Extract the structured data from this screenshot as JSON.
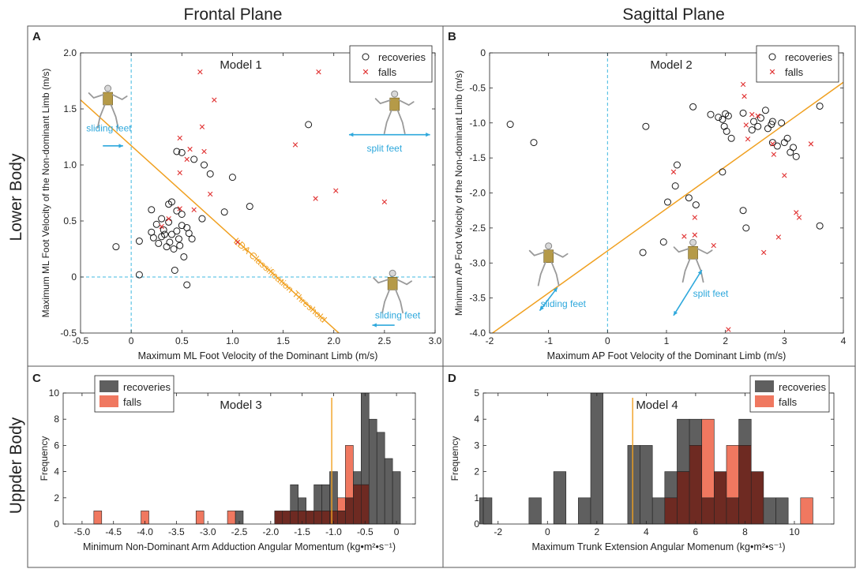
{
  "figure": {
    "col_titles": [
      "Frontal Plane",
      "Sagittal Plane"
    ],
    "row_titles": [
      "Lower Body",
      "Uppder Body"
    ],
    "colors": {
      "recovery_marker": "#1a1a1a",
      "fall_marker": "#e03030",
      "threshold": "#f0a020",
      "guide": "#40b8e0",
      "annotation": "#2ea8dc",
      "hist_recovery": "#5f5f5f",
      "hist_fall": "#f07860",
      "hist_overlap": "#6e2a22",
      "frame": "#555555"
    }
  },
  "chart_data": [
    {
      "panel": "A",
      "type": "scatter",
      "title": "Model 1",
      "xlabel": "Maximum ML Foot Velocity of the Dominant Limb (m/s)",
      "ylabel": "Maximum ML Foot Velocity of the Non-dominant Limb (m/s)",
      "xlim": [
        -0.5,
        3.0
      ],
      "ylim": [
        -0.5,
        2.0
      ],
      "xticks": [
        -0.5,
        0,
        0.5,
        1.0,
        1.5,
        2.0,
        2.5,
        3.0
      ],
      "xtick_labels": [
        "-0.5",
        "0",
        "0.5",
        "1.0",
        "1.5",
        "2.0",
        "2.5",
        "3.0"
      ],
      "yticks": [
        -0.5,
        0,
        0.5,
        1.0,
        1.5,
        2.0
      ],
      "ytick_labels": [
        "-0.5",
        "0",
        "0.5",
        "1.0",
        "1.5",
        "2.0"
      ],
      "legend": [
        "recoveries",
        "falls"
      ],
      "legend_position": "top-right",
      "guides": {
        "x": 0,
        "y": 0
      },
      "threshold": {
        "label": "LDA Classification Threshold",
        "from": [
          -0.5,
          1.58
        ],
        "to": [
          2.05,
          -0.5
        ]
      },
      "annotations": [
        {
          "text": "sliding feet",
          "at": [
            -0.22,
            1.3
          ]
        },
        {
          "text": "split feet",
          "at": [
            2.5,
            1.12
          ]
        },
        {
          "text": "sliding feet",
          "at": [
            2.63,
            -0.37
          ]
        }
      ],
      "series": [
        {
          "name": "recoveries",
          "points": [
            [
              -0.15,
              0.27
            ],
            [
              0.08,
              0.02
            ],
            [
              0.08,
              0.32
            ],
            [
              0.2,
              0.6
            ],
            [
              0.2,
              0.4
            ],
            [
              0.22,
              0.35
            ],
            [
              0.25,
              0.47
            ],
            [
              0.27,
              0.3
            ],
            [
              0.3,
              0.36
            ],
            [
              0.3,
              0.52
            ],
            [
              0.32,
              0.42
            ],
            [
              0.33,
              0.38
            ],
            [
              0.35,
              0.27
            ],
            [
              0.37,
              0.49
            ],
            [
              0.37,
              0.65
            ],
            [
              0.38,
              0.31
            ],
            [
              0.4,
              0.67
            ],
            [
              0.4,
              0.38
            ],
            [
              0.42,
              0.25
            ],
            [
              0.43,
              0.06
            ],
            [
              0.45,
              0.41
            ],
            [
              0.45,
              0.59
            ],
            [
              0.47,
              0.34
            ],
            [
              0.48,
              0.28
            ],
            [
              0.5,
              0.56
            ],
            [
              0.5,
              0.46
            ],
            [
              0.52,
              0.18
            ],
            [
              0.55,
              -0.07
            ],
            [
              0.55,
              0.44
            ],
            [
              0.57,
              0.39
            ],
            [
              0.6,
              0.34
            ],
            [
              0.45,
              1.12
            ],
            [
              0.5,
              1.11
            ],
            [
              0.62,
              1.05
            ],
            [
              0.72,
              1.0
            ],
            [
              0.78,
              0.92
            ],
            [
              0.7,
              0.52
            ],
            [
              0.92,
              0.58
            ],
            [
              1.0,
              0.89
            ],
            [
              1.17,
              0.63
            ],
            [
              1.75,
              1.36
            ]
          ]
        },
        {
          "name": "falls",
          "points": [
            [
              0.3,
              0.45
            ],
            [
              0.37,
              0.52
            ],
            [
              0.48,
              0.61
            ],
            [
              0.48,
              0.93
            ],
            [
              0.48,
              1.24
            ],
            [
              0.58,
              1.14
            ],
            [
              0.62,
              0.6
            ],
            [
              0.68,
              1.83
            ],
            [
              0.7,
              1.34
            ],
            [
              0.72,
              1.12
            ],
            [
              0.78,
              0.74
            ],
            [
              0.82,
              1.58
            ],
            [
              0.55,
              1.05
            ],
            [
              1.05,
              0.31
            ],
            [
              1.62,
              1.18
            ],
            [
              1.82,
              0.7
            ],
            [
              1.85,
              1.83
            ],
            [
              2.02,
              0.77
            ],
            [
              2.5,
              0.67
            ]
          ]
        }
      ]
    },
    {
      "panel": "B",
      "type": "scatter",
      "title": "Model 2",
      "xlabel": "Maximum AP Foot Velocity of the Dominant Limb (m/s)",
      "ylabel": "Minimum AP Foot Velocity of the Non-dominant Limb (m/s)",
      "xlim": [
        -2,
        4
      ],
      "ylim": [
        -4.0,
        0
      ],
      "xticks": [
        -2,
        -1,
        0,
        1,
        2,
        3,
        4
      ],
      "xtick_labels": [
        "-2",
        "-1",
        "0",
        "1",
        "2",
        "3",
        "4"
      ],
      "yticks": [
        -4.0,
        -3.5,
        -3.0,
        -2.5,
        -2.0,
        -1.5,
        -1.0,
        -0.5,
        0
      ],
      "ytick_labels": [
        "-4.0",
        "-3.5",
        "-3.0",
        "-2.5",
        "-2.0",
        "-1.5",
        "-1.0",
        "-0.5",
        "0"
      ],
      "legend": [
        "recoveries",
        "falls"
      ],
      "legend_position": "top-right",
      "guides": {
        "x": 0
      },
      "threshold": {
        "label": "",
        "from": [
          -1.95,
          -4.0
        ],
        "to": [
          4.0,
          -0.42
        ]
      },
      "annotations": [
        {
          "text": "sliding feet",
          "at": [
            -0.75,
            -3.63
          ]
        },
        {
          "text": "split feet",
          "at": [
            1.75,
            -3.48
          ]
        }
      ],
      "series": [
        {
          "name": "recoveries",
          "points": [
            [
              -1.65,
              -1.02
            ],
            [
              -1.25,
              -1.28
            ],
            [
              0.65,
              -1.05
            ],
            [
              0.6,
              -2.85
            ],
            [
              0.95,
              -2.7
            ],
            [
              1.02,
              -2.13
            ],
            [
              1.15,
              -1.9
            ],
            [
              1.18,
              -1.6
            ],
            [
              1.38,
              -2.07
            ],
            [
              1.5,
              -2.17
            ],
            [
              1.45,
              -0.77
            ],
            [
              1.75,
              -0.88
            ],
            [
              1.95,
              -1.7
            ],
            [
              1.88,
              -0.92
            ],
            [
              1.95,
              -0.95
            ],
            [
              1.98,
              -1.05
            ],
            [
              2.0,
              -0.87
            ],
            [
              2.05,
              -0.9
            ],
            [
              2.1,
              -1.22
            ],
            [
              2.02,
              -1.12
            ],
            [
              2.3,
              -0.86
            ],
            [
              2.3,
              -2.25
            ],
            [
              2.35,
              -2.5
            ],
            [
              2.45,
              -1.1
            ],
            [
              2.48,
              -0.98
            ],
            [
              2.55,
              -1.05
            ],
            [
              2.6,
              -0.93
            ],
            [
              2.68,
              -0.82
            ],
            [
              2.72,
              -1.08
            ],
            [
              2.78,
              -1.02
            ],
            [
              2.8,
              -0.98
            ],
            [
              2.8,
              -1.28
            ],
            [
              2.88,
              -1.33
            ],
            [
              2.95,
              -1.0
            ],
            [
              3.0,
              -1.28
            ],
            [
              3.05,
              -1.22
            ],
            [
              3.1,
              -1.42
            ],
            [
              3.15,
              -1.35
            ],
            [
              3.2,
              -1.48
            ],
            [
              3.6,
              -0.76
            ],
            [
              3.6,
              -2.47
            ]
          ]
        },
        {
          "name": "falls",
          "points": [
            [
              1.12,
              -1.7
            ],
            [
              1.3,
              -2.62
            ],
            [
              1.48,
              -2.35
            ],
            [
              1.48,
              -2.6
            ],
            [
              1.8,
              -2.75
            ],
            [
              2.05,
              -3.95
            ],
            [
              2.3,
              -0.45
            ],
            [
              2.32,
              -0.62
            ],
            [
              2.35,
              -1.03
            ],
            [
              2.38,
              -1.23
            ],
            [
              2.45,
              -0.88
            ],
            [
              2.55,
              -0.9
            ],
            [
              2.65,
              -2.85
            ],
            [
              2.8,
              -1.3
            ],
            [
              2.82,
              -1.45
            ],
            [
              2.9,
              -2.63
            ],
            [
              3.0,
              -1.75
            ],
            [
              3.2,
              -2.28
            ],
            [
              3.25,
              -2.35
            ],
            [
              3.45,
              -1.3
            ]
          ]
        }
      ]
    },
    {
      "panel": "C",
      "type": "histogram",
      "title": "Model 3",
      "xlabel": "Minimum Non-Dominant Arm Adduction Angular Momentum (kg•m²•s⁻¹)",
      "ylabel": "Frequency",
      "xlim": [
        -5.3,
        0.3
      ],
      "ylim": [
        0,
        10
      ],
      "xticks": [
        -5.0,
        -4.5,
        -4.0,
        -3.5,
        -3.0,
        -2.5,
        -2.0,
        -1.5,
        -1.0,
        -0.5,
        0
      ],
      "xtick_labels": [
        "-5.0",
        "-4.5",
        "-4.0",
        "-3.5",
        "-3.0",
        "-2.5",
        "-2.0",
        "-1.5",
        "-1.0",
        "-0.5",
        "0"
      ],
      "yticks": [
        0,
        2,
        4,
        6,
        8,
        10
      ],
      "ytick_labels": [
        "0",
        "2",
        "4",
        "6",
        "8",
        "10"
      ],
      "bin_width": 0.125,
      "legend": [
        "recoveries",
        "falls"
      ],
      "legend_position": "top-left",
      "threshold_x": -1.03,
      "series": [
        {
          "name": "recoveries",
          "bins": [
            [
              -2.5,
              1
            ],
            [
              -1.875,
              1
            ],
            [
              -1.75,
              1
            ],
            [
              -1.625,
              3
            ],
            [
              -1.5,
              2
            ],
            [
              -1.375,
              1
            ],
            [
              -1.25,
              3
            ],
            [
              -1.125,
              3
            ],
            [
              -1.0,
              4
            ],
            [
              -0.875,
              1
            ],
            [
              -0.75,
              2
            ],
            [
              -0.625,
              4
            ],
            [
              -0.5,
              10
            ],
            [
              -0.375,
              8
            ],
            [
              -0.25,
              7
            ],
            [
              -0.125,
              5
            ],
            [
              0.0,
              4
            ]
          ]
        },
        {
          "name": "falls",
          "bins": [
            [
              -4.75,
              1
            ],
            [
              -4.0,
              1
            ],
            [
              -3.125,
              1
            ],
            [
              -2.625,
              1
            ],
            [
              -1.875,
              1
            ],
            [
              -1.75,
              1
            ],
            [
              -1.625,
              1
            ],
            [
              -1.5,
              1
            ],
            [
              -1.375,
              1
            ],
            [
              -1.25,
              1
            ],
            [
              -1.125,
              1
            ],
            [
              -1.0,
              1
            ],
            [
              -0.875,
              2
            ],
            [
              -0.75,
              6
            ],
            [
              -0.625,
              3
            ],
            [
              -0.5,
              3
            ]
          ]
        }
      ]
    },
    {
      "panel": "D",
      "type": "histogram",
      "title": "Model 4",
      "xlabel": "Maximum Trunk Extension Angular Momenum (kg•m²•s⁻¹)",
      "ylabel": "Frequency",
      "xlim": [
        -2.6,
        11.6
      ],
      "ylim": [
        0,
        5
      ],
      "xticks": [
        -2,
        0,
        2,
        4,
        6,
        8,
        10
      ],
      "xtick_labels": [
        "-2",
        "0",
        "2",
        "4",
        "6",
        "8",
        "10"
      ],
      "yticks": [
        0,
        1,
        2,
        3,
        4,
        5
      ],
      "ytick_labels": [
        "0",
        "1",
        "2",
        "3",
        "4",
        "5"
      ],
      "bin_width": 0.5,
      "legend": [
        "recoveries",
        "falls"
      ],
      "legend_position": "top-right",
      "threshold_x": 3.45,
      "series": [
        {
          "name": "recoveries",
          "bins": [
            [
              -2.5,
              1
            ],
            [
              -0.5,
              1
            ],
            [
              0.5,
              2
            ],
            [
              1.5,
              1
            ],
            [
              2.0,
              5
            ],
            [
              3.5,
              3
            ],
            [
              4.0,
              3
            ],
            [
              4.5,
              1
            ],
            [
              5.0,
              2
            ],
            [
              5.5,
              4
            ],
            [
              6.0,
              4
            ],
            [
              6.5,
              1
            ],
            [
              7.0,
              2
            ],
            [
              7.5,
              1
            ],
            [
              8.0,
              4
            ],
            [
              8.5,
              2
            ],
            [
              9.0,
              1
            ],
            [
              9.5,
              1
            ]
          ]
        },
        {
          "name": "falls",
          "bins": [
            [
              5.0,
              1
            ],
            [
              5.5,
              2
            ],
            [
              6.0,
              3
            ],
            [
              6.5,
              4
            ],
            [
              7.0,
              2
            ],
            [
              7.5,
              3
            ],
            [
              8.0,
              3
            ],
            [
              8.5,
              2
            ],
            [
              10.5,
              1
            ]
          ]
        }
      ]
    }
  ]
}
